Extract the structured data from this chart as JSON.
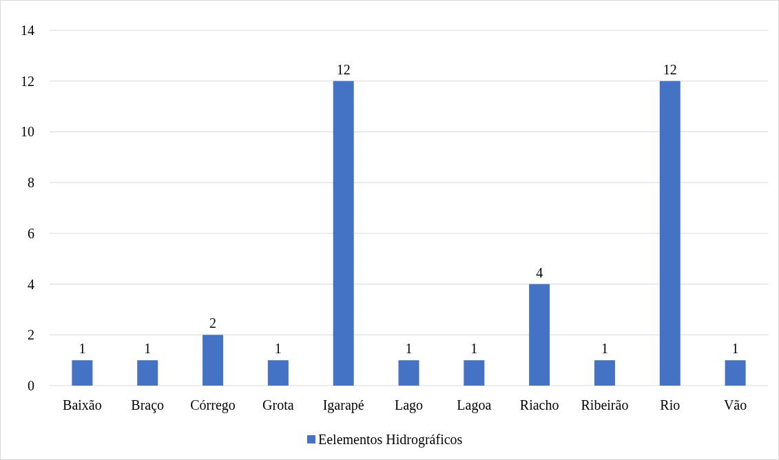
{
  "chart_data": {
    "type": "bar",
    "categories": [
      "Baixão",
      "Braço",
      "Córrego",
      "Grota",
      "Igarapé",
      "Lago",
      "Lagoa",
      "Riacho",
      "Ribeirão",
      "Rio",
      "Vão"
    ],
    "series": [
      {
        "name": "Eelementos Hidrográficos",
        "color": "#4472c4",
        "values": [
          1,
          1,
          2,
          1,
          12,
          1,
          1,
          4,
          1,
          12,
          1
        ]
      }
    ],
    "ylim": [
      0,
      14
    ],
    "yticks": [
      0,
      2,
      4,
      6,
      8,
      10,
      12,
      14
    ],
    "grid": "y",
    "data_labels": true,
    "legend": "bottom"
  }
}
